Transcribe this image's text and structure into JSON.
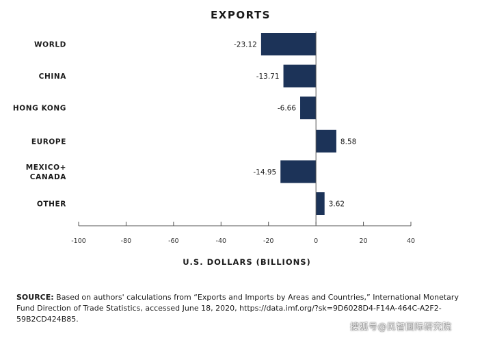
{
  "chart_data": {
    "type": "bar",
    "orientation": "horizontal",
    "title": "EXPORTS",
    "xlabel": "U.S. DOLLARS (BILLIONS)",
    "categories": [
      [
        "WORLD"
      ],
      [
        "CHINA"
      ],
      [
        "HONG KONG"
      ],
      [
        "EUROPE"
      ],
      [
        "MEXICO+",
        "CANADA"
      ],
      [
        "OTHER"
      ]
    ],
    "values": [
      -23.12,
      -13.71,
      -6.66,
      8.58,
      -14.95,
      3.62
    ],
    "value_labels": [
      "-23.12",
      "-13.71",
      "-6.66",
      "8.58",
      "-14.95",
      "3.62"
    ],
    "xlim": [
      -100,
      40
    ],
    "xticks": [
      -100,
      -80,
      -60,
      -40,
      -20,
      0,
      20,
      40
    ],
    "grid": false,
    "bar_color": "#1c3358"
  },
  "source": {
    "label": "SOURCE:",
    "text": "Based on authors' calculations from “Exports and Imports by Areas and Countries,” International Monetary Fund Direction of Trade Statistics, accessed June 18, 2020, https://data.imf.org/?sk=9D6028D4-F14A-464C-A2F2-59B2CD424B85."
  },
  "watermark": "搜狐号@民智国际研究院"
}
